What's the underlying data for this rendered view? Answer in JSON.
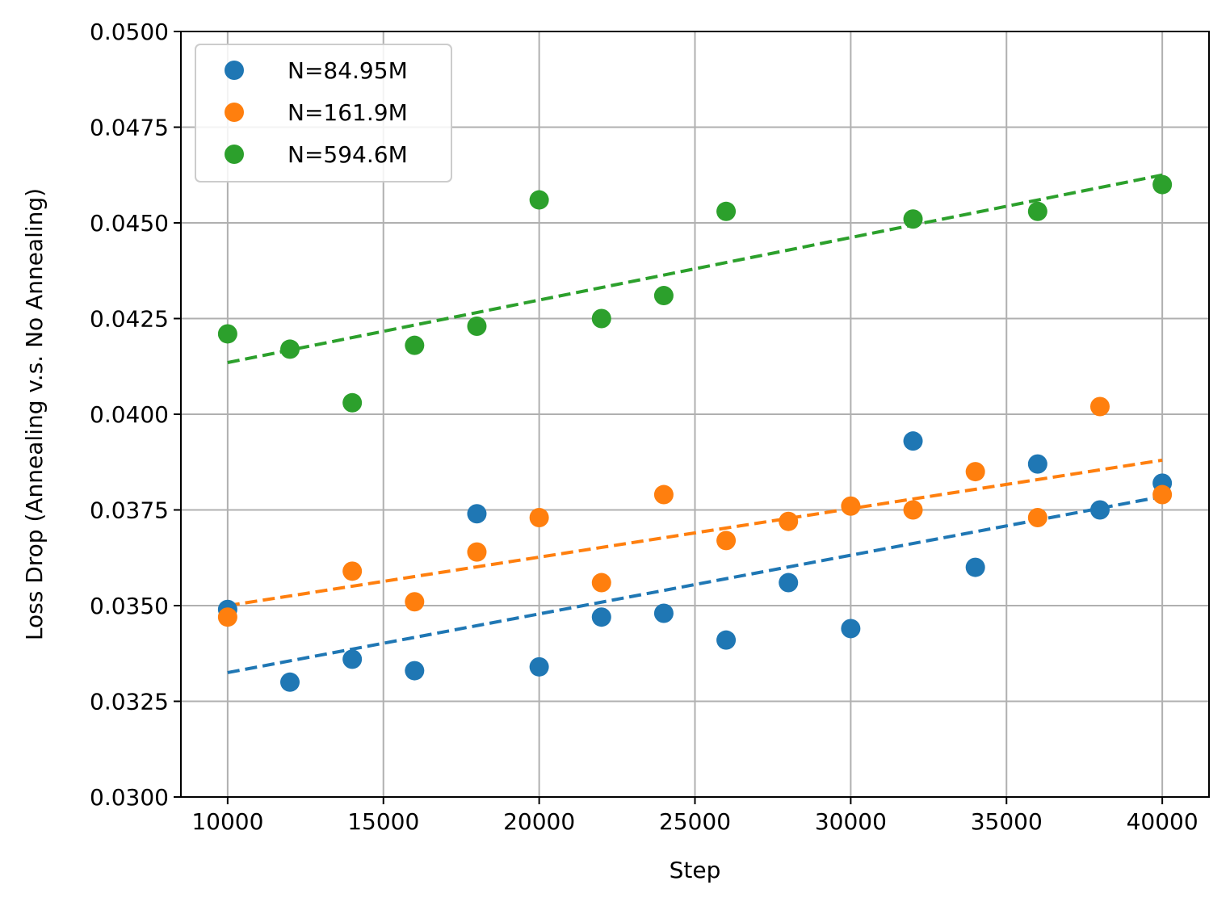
{
  "chart_data": {
    "type": "scatter",
    "title": "",
    "xlabel": "Step",
    "ylabel": "Loss Drop (Annealing v.s. No Annealing)",
    "xlim": [
      8500,
      41500
    ],
    "ylim": [
      0.03,
      0.05
    ],
    "xticks": [
      10000,
      15000,
      20000,
      25000,
      30000,
      35000,
      40000
    ],
    "xtick_labels": [
      "10000",
      "15000",
      "20000",
      "25000",
      "30000",
      "35000",
      "40000"
    ],
    "yticks": [
      0.03,
      0.0325,
      0.035,
      0.0375,
      0.04,
      0.0425,
      0.045,
      0.0475,
      0.05
    ],
    "ytick_labels": [
      "0.0300",
      "0.0325",
      "0.0350",
      "0.0375",
      "0.0400",
      "0.0425",
      "0.0450",
      "0.0475",
      "0.0500"
    ],
    "grid": true,
    "legend_position": "top-left",
    "series": [
      {
        "name": "N=84.95M",
        "color": "#1f77b4",
        "x": [
          10000,
          12000,
          14000,
          16000,
          18000,
          20000,
          22000,
          24000,
          26000,
          28000,
          30000,
          32000,
          34000,
          36000,
          38000,
          40000
        ],
        "y": [
          0.0349,
          0.033,
          0.0336,
          0.0333,
          0.0374,
          0.0334,
          0.0347,
          0.0348,
          0.0341,
          0.0356,
          0.0344,
          0.0393,
          0.036,
          0.0387,
          0.0375,
          0.0382
        ],
        "fit": {
          "x": [
            10000,
            40000
          ],
          "y": [
            0.03325,
            0.03785
          ]
        }
      },
      {
        "name": "N=161.9M",
        "color": "#ff7f0e",
        "x": [
          10000,
          14000,
          16000,
          18000,
          20000,
          22000,
          24000,
          26000,
          28000,
          30000,
          32000,
          34000,
          36000,
          38000,
          40000
        ],
        "y": [
          0.0347,
          0.0359,
          0.0351,
          0.0364,
          0.0373,
          0.0356,
          0.0379,
          0.0367,
          0.0372,
          0.0376,
          0.0375,
          0.0385,
          0.0373,
          0.0402,
          0.0379
        ],
        "fit": {
          "x": [
            10000,
            40000
          ],
          "y": [
            0.035,
            0.0388
          ]
        }
      },
      {
        "name": "N=594.6M",
        "color": "#2ca02c",
        "x": [
          10000,
          12000,
          14000,
          16000,
          18000,
          20000,
          22000,
          24000,
          26000,
          32000,
          36000,
          40000
        ],
        "y": [
          0.0421,
          0.0417,
          0.0403,
          0.0418,
          0.0423,
          0.0456,
          0.0425,
          0.0431,
          0.0453,
          0.0451,
          0.0453,
          0.046
        ],
        "fit": {
          "x": [
            10000,
            40000
          ],
          "y": [
            0.04135,
            0.04625
          ]
        }
      }
    ]
  }
}
